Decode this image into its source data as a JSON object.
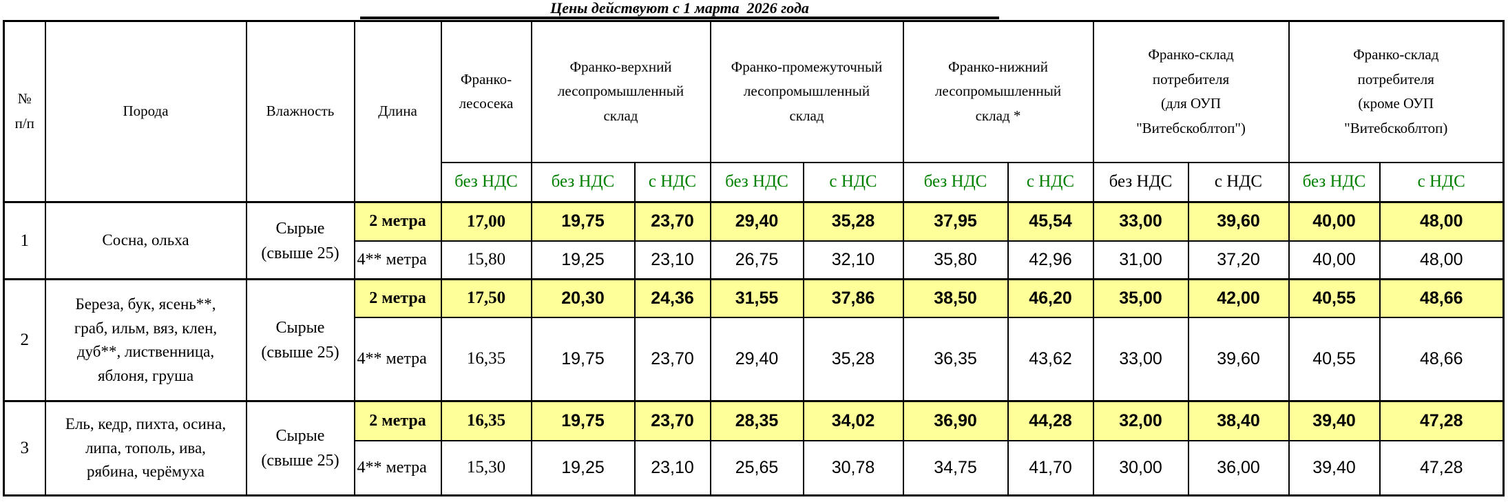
{
  "title": "Цены действуют с 1 марта  2026 года",
  "colors": {
    "highlight": "#FFFF99",
    "subheader_green": "#008000",
    "text": "#000000",
    "border": "#000000"
  },
  "header": {
    "num": "№\nп/п",
    "poroda": "Порода",
    "vlazhnost": "Влажность",
    "dlina": "Длина",
    "groups": [
      {
        "label": "Франко-\nлесосека",
        "subs": [
          {
            "label": "без НДС",
            "color": "green"
          }
        ]
      },
      {
        "label": "Франко-верхний\nлесопромышленный\nсклад",
        "subs": [
          {
            "label": "без НДС",
            "color": "green"
          },
          {
            "label": "с НДС",
            "color": "green"
          }
        ]
      },
      {
        "label": "Франко-промежуточный\nлесопромышленный\nсклад",
        "subs": [
          {
            "label": "без НДС",
            "color": "green"
          },
          {
            "label": "с НДС",
            "color": "green"
          }
        ]
      },
      {
        "label": "Франко-нижний\nлесопромышленный\nсклад *",
        "subs": [
          {
            "label": "без НДС",
            "color": "green"
          },
          {
            "label": "с НДС",
            "color": "green"
          }
        ]
      },
      {
        "label": "Франко-склад\nпотребителя\n(для ОУП\n\"Витебскоблтоп\")",
        "subs": [
          {
            "label": "без НДС",
            "color": "black"
          },
          {
            "label": "с НДС",
            "color": "black"
          }
        ]
      },
      {
        "label": "Франко-склад\nпотребителя\n(кроме ОУП\n\"Витебскоблтоп)",
        "subs": [
          {
            "label": "без НДС",
            "color": "green"
          },
          {
            "label": "с НДС",
            "color": "green"
          }
        ]
      }
    ]
  },
  "rows": [
    {
      "num": "1",
      "poroda": "Сосна, ольха",
      "vlazhnost": "Сырые\n(свыше 25)",
      "lines": [
        {
          "dlina": "2 метра",
          "highlight": true,
          "values": [
            "17,00",
            "19,75",
            "23,70",
            "29,40",
            "35,28",
            "37,95",
            "45,54",
            "33,00",
            "39,60",
            "40,00",
            "48,00"
          ]
        },
        {
          "dlina": "4** метра",
          "highlight": false,
          "values": [
            "15,80",
            "19,25",
            "23,10",
            "26,75",
            "32,10",
            "35,80",
            "42,96",
            "31,00",
            "37,20",
            "40,00",
            "48,00"
          ]
        }
      ]
    },
    {
      "num": "2",
      "poroda": "Береза, бук, ясень**,\nграб, ильм, вяз, клен,\nдуб**, лиственница,\nяблоня, груша",
      "vlazhnost": "Сырые\n(свыше 25)",
      "lines": [
        {
          "dlina": "2 метра",
          "highlight": true,
          "values": [
            "17,50",
            "20,30",
            "24,36",
            "31,55",
            "37,86",
            "38,50",
            "46,20",
            "35,00",
            "42,00",
            "40,55",
            "48,66"
          ]
        },
        {
          "dlina": "4** метра",
          "highlight": false,
          "values": [
            "16,35",
            "19,75",
            "23,70",
            "29,40",
            "35,28",
            "36,35",
            "43,62",
            "33,00",
            "39,60",
            "40,55",
            "48,66"
          ]
        }
      ]
    },
    {
      "num": "3",
      "poroda": "Ель, кедр, пихта, осина,\nлипа, тополь, ива,\nрябина, черёмуха",
      "vlazhnost": "Сырые\n(свыше 25)",
      "lines": [
        {
          "dlina": "2 метра",
          "highlight": true,
          "values": [
            "16,35",
            "19,75",
            "23,70",
            "28,35",
            "34,02",
            "36,90",
            "44,28",
            "32,00",
            "38,40",
            "39,40",
            "47,28"
          ]
        },
        {
          "dlina": "4** метра",
          "highlight": false,
          "values": [
            "15,30",
            "19,25",
            "23,10",
            "25,65",
            "30,78",
            "34,75",
            "41,70",
            "30,00",
            "36,00",
            "39,40",
            "47,28"
          ]
        }
      ]
    }
  ]
}
